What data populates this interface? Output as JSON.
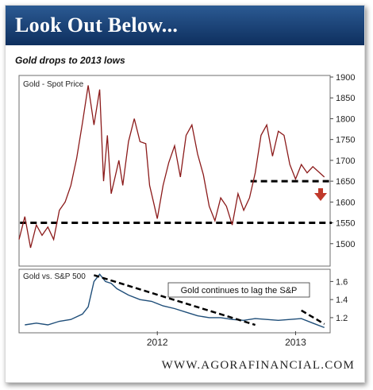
{
  "header": {
    "title": "Look Out Below..."
  },
  "subtitle": "Gold drops to 2013 lows",
  "footer": {
    "site": "WWW.AGORAFINANCIAL.COM"
  },
  "colors": {
    "header_bg": "#1b447a",
    "gold_line": "#8b1a1a",
    "ratio_line": "#1f4e79",
    "arrow": "#c0392b"
  },
  "chart_data": [
    {
      "type": "line",
      "title": "Gold - Spot Price",
      "ylim": [
        1450,
        1900
      ],
      "yticks": [
        1500,
        1550,
        1600,
        1650,
        1700,
        1750,
        1800,
        1850,
        1900
      ],
      "grid": false,
      "reference_lines": [
        {
          "y": 1550,
          "style": "dashed",
          "x_from": "2011-01",
          "x_to": "2013-03"
        },
        {
          "y": 1650,
          "style": "dashed",
          "x_from": "2012-09",
          "x_to": "2013-03"
        }
      ],
      "annotation_icon": "down-arrow-icon",
      "series": [
        {
          "x": [
            "2011-01",
            "2011-01",
            "2011-02",
            "2011-02",
            "2011-03",
            "2011-03",
            "2011-04",
            "2011-04",
            "2011-05",
            "2011-05",
            "2011-06",
            "2011-06",
            "2011-07",
            "2011-07",
            "2011-08",
            "2011-08",
            "2011-08",
            "2011-09",
            "2011-09",
            "2011-09",
            "2011-10",
            "2011-10",
            "2011-11",
            "2011-11",
            "2011-12",
            "2011-12",
            "2011-12",
            "2012-01",
            "2012-01",
            "2012-02",
            "2012-02",
            "2012-03",
            "2012-03",
            "2012-04",
            "2012-04",
            "2012-05",
            "2012-05",
            "2012-06",
            "2012-06",
            "2012-07",
            "2012-07",
            "2012-08",
            "2012-08",
            "2012-09",
            "2012-09",
            "2012-10",
            "2012-10",
            "2012-11",
            "2012-11",
            "2012-12",
            "2012-12",
            "2013-01",
            "2013-01",
            "2013-02",
            "2013-02",
            "2013-03"
          ],
          "y": [
            1510,
            1565,
            1490,
            1545,
            1520,
            1540,
            1510,
            1580,
            1600,
            1640,
            1705,
            1790,
            1880,
            1785,
            1870,
            1650,
            1760,
            1620,
            1660,
            1700,
            1640,
            1745,
            1800,
            1745,
            1740,
            1640,
            1600,
            1560,
            1640,
            1695,
            1735,
            1660,
            1760,
            1785,
            1715,
            1665,
            1590,
            1555,
            1610,
            1590,
            1545,
            1620,
            1580,
            1610,
            1670,
            1760,
            1785,
            1710,
            1770,
            1760,
            1690,
            1655,
            1690,
            1670,
            1685,
            1660
          ]
        }
      ]
    },
    {
      "type": "line",
      "title": "Gold vs. S&P 500",
      "ylim": [
        1.05,
        1.7
      ],
      "yticks": [
        1.2,
        1.4,
        1.6
      ],
      "xticks": [
        "2012",
        "2013"
      ],
      "annotation": "Gold continues to lag the S&P",
      "trend_lines": [
        {
          "from": [
            "2011-07",
            1.67
          ],
          "to": [
            "2012-09",
            1.12
          ]
        },
        {
          "from": [
            "2013-01",
            1.28
          ],
          "to": [
            "2013-03",
            1.13
          ]
        }
      ],
      "series": [
        {
          "x": [
            "2011-01",
            "2011-02",
            "2011-03",
            "2011-04",
            "2011-05",
            "2011-06",
            "2011-07",
            "2011-07",
            "2011-08",
            "2011-08",
            "2011-09",
            "2011-09",
            "2011-10",
            "2011-11",
            "2011-12",
            "2012-01",
            "2012-02",
            "2012-03",
            "2012-04",
            "2012-05",
            "2012-06",
            "2012-07",
            "2012-08",
            "2012-09",
            "2012-10",
            "2012-11",
            "2012-12",
            "2013-01",
            "2013-02",
            "2013-03"
          ],
          "y": [
            1.12,
            1.14,
            1.12,
            1.16,
            1.18,
            1.24,
            1.32,
            1.6,
            1.68,
            1.6,
            1.58,
            1.52,
            1.45,
            1.4,
            1.38,
            1.33,
            1.3,
            1.26,
            1.22,
            1.2,
            1.2,
            1.18,
            1.17,
            1.19,
            1.18,
            1.17,
            1.18,
            1.19,
            1.14,
            1.09
          ]
        }
      ]
    }
  ]
}
